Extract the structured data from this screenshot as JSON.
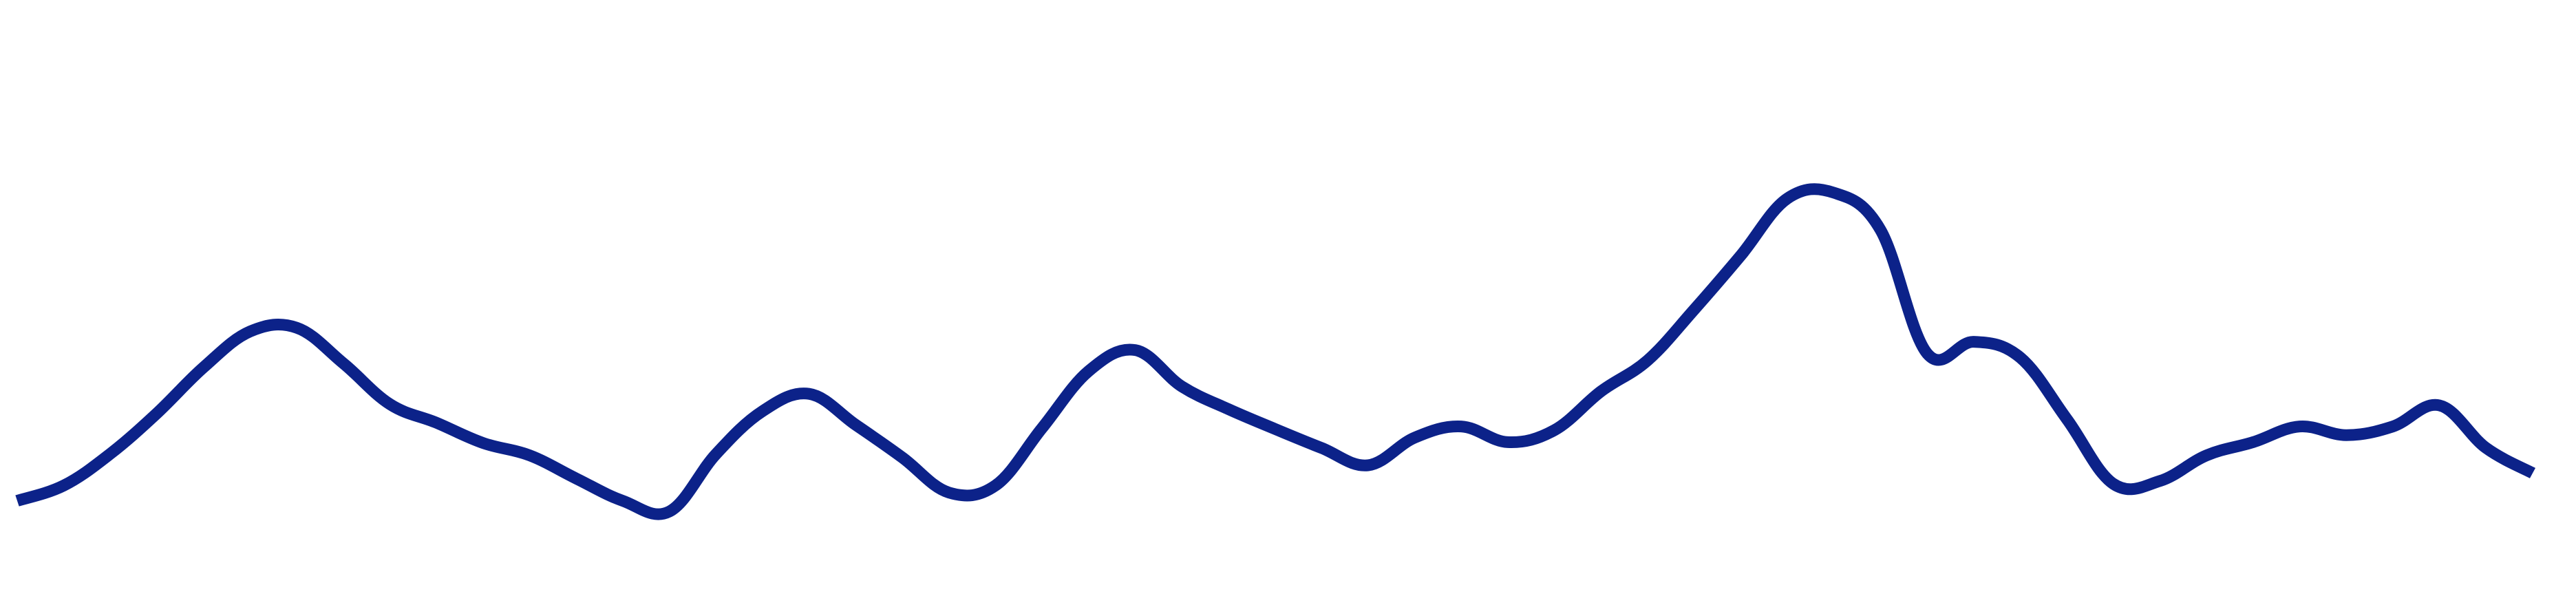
{
  "chart_data": {
    "type": "line",
    "title": "",
    "xlabel": "",
    "ylabel": "",
    "axes_visible": false,
    "grid": false,
    "legend": "none",
    "xlim": [
      0,
      54
    ],
    "ylim": [
      0,
      100
    ],
    "x": [
      0,
      1,
      2,
      3,
      4,
      5,
      6,
      7,
      8,
      9,
      10,
      11,
      12,
      13,
      14,
      15,
      16,
      17,
      18,
      19,
      20,
      21,
      22,
      23,
      24,
      25,
      26,
      27,
      28,
      29,
      30,
      31,
      32,
      33,
      34,
      35,
      36,
      37,
      38,
      39,
      40,
      41,
      42,
      43,
      44,
      45,
      46,
      47,
      48,
      49,
      50,
      51,
      52,
      53,
      54
    ],
    "series": [
      {
        "name": "",
        "color": "#0c2289",
        "values": [
          5.4,
          9.1,
          16.8,
          26.6,
          37.7,
          46.4,
          47.3,
          38.7,
          28.8,
          24.3,
          19.4,
          16.4,
          10.8,
          5.4,
          2.8,
          16.7,
          27.1,
          31.3,
          23.8,
          15.9,
          7.4,
          9.1,
          23.0,
          36.8,
          41.9,
          33.1,
          27.6,
          22.8,
          18.2,
          14.0,
          20.7,
          23.4,
          19.6,
          22.5,
          31.9,
          39.4,
          51.7,
          64.8,
          78.6,
          80.0,
          71.0,
          41.1,
          43.9,
          40.1,
          25.2,
          9.5,
          10.2,
          16.4,
          19.6,
          23.4,
          21.3,
          23.4,
          28.5,
          18.2,
          12.1
        ]
      }
    ]
  }
}
